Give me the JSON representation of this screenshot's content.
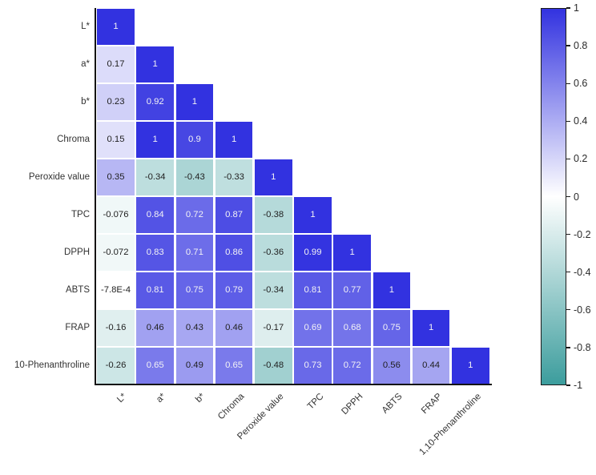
{
  "chart_data": {
    "type": "heatmap",
    "subtype": "correlation-matrix-lower-triangle",
    "title": "",
    "row_labels": [
      "L*",
      "a*",
      "b*",
      "Chroma",
      "Peroxide value",
      "TPC",
      "DPPH",
      "ABTS",
      "FRAP",
      "10-Phenanthroline"
    ],
    "col_labels": [
      "L*",
      "a*",
      "b*",
      "Chroma",
      "Peroxide value",
      "TPC",
      "DPPH",
      "ABTS",
      "FRAP",
      "1,10-Phenanthroline"
    ],
    "cells": [
      [
        "1"
      ],
      [
        "0.17",
        "1"
      ],
      [
        "0.23",
        "0.92",
        "1"
      ],
      [
        "0.15",
        "1",
        "0.9",
        "1"
      ],
      [
        "0.35",
        "-0.34",
        "-0.43",
        "-0.33",
        "1"
      ],
      [
        "-0.076",
        "0.84",
        "0.72",
        "0.87",
        "-0.38",
        "1"
      ],
      [
        "-0.072",
        "0.83",
        "0.71",
        "0.86",
        "-0.36",
        "0.99",
        "1"
      ],
      [
        "-7.8E-4",
        "0.81",
        "0.75",
        "0.79",
        "-0.34",
        "0.81",
        "0.77",
        "1"
      ],
      [
        "-0.16",
        "0.46",
        "0.43",
        "0.46",
        "-0.17",
        "0.69",
        "0.68",
        "0.75",
        "1"
      ],
      [
        "-0.26",
        "0.65",
        "0.49",
        "0.65",
        "-0.48",
        "0.73",
        "0.72",
        "0.56",
        "0.44",
        "1"
      ]
    ],
    "colormap": {
      "positive": "#3232E0",
      "zero": "#FFFFFF",
      "negative": "#3C9D9D"
    },
    "value_text_light": "#F2F2F5",
    "value_text_dark": "#1F1F1F",
    "axis_color": "#141414",
    "colorbar": {
      "max": 1,
      "min": -1,
      "tick_labels": [
        "1",
        "0.8",
        "0.6",
        "0.4",
        "0.2",
        "0",
        "-0.2",
        "-0.4",
        "-0.6",
        "-0.8",
        "-1"
      ]
    }
  }
}
